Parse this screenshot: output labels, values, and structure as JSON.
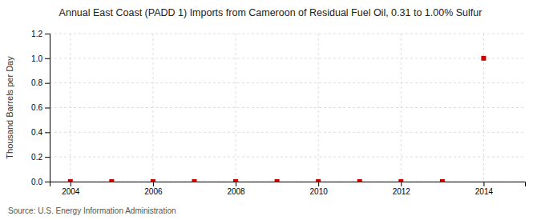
{
  "chart_data": {
    "type": "scatter",
    "title": "Annual East Coast (PADD 1) Imports from Cameroon of Residual Fuel Oil, 0.31 to 1.00% Sulfur",
    "y_label": "Thousand Barrels per Day",
    "source": "Source: U.S. Energy Information Administration",
    "x": [
      2004,
      2005,
      2006,
      2007,
      2008,
      2009,
      2010,
      2011,
      2012,
      2013,
      2014
    ],
    "values": [
      0.0,
      0.0,
      0.0,
      0.0,
      0.0,
      0.0,
      0.0,
      0.0,
      0.0,
      0.0,
      1.0
    ],
    "color": "#cc0000",
    "marker": "square",
    "xlim": [
      2003.5,
      2015.0
    ],
    "ylim": [
      0.0,
      1.2
    ],
    "xticks": [
      2004,
      2006,
      2008,
      2010,
      2012,
      2014
    ],
    "yticks": [
      {
        "value": 0.0,
        "label": "0.0"
      },
      0.2,
      0.4,
      0.6,
      0.8,
      {
        "value": 1.0,
        "label": "1.0"
      },
      1.2
    ],
    "grid": true
  }
}
